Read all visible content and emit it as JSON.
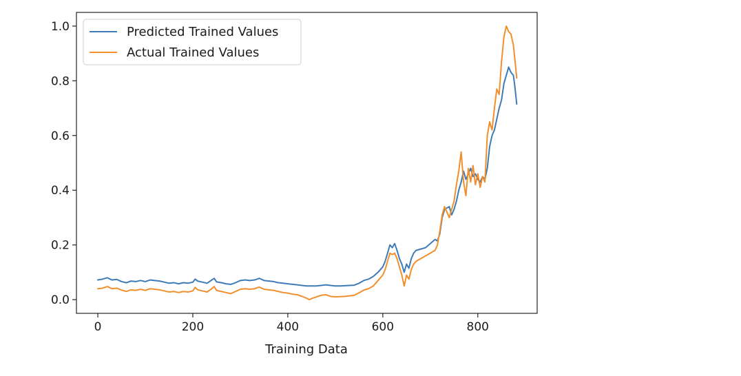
{
  "chart_data": {
    "type": "line",
    "title": "",
    "xlabel": "Training Data",
    "ylabel": "",
    "xlim": [
      -45,
      925
    ],
    "ylim": [
      -0.05,
      1.05
    ],
    "xticks": [
      0,
      200,
      400,
      600,
      800
    ],
    "xtick_labels": [
      "0",
      "200",
      "400",
      "600",
      "800"
    ],
    "yticks": [
      0.0,
      0.2,
      0.4,
      0.6,
      0.8,
      1.0
    ],
    "ytick_labels": [
      "0.0",
      "0.2",
      "0.4",
      "0.6",
      "0.8",
      "1.0"
    ],
    "grid": false,
    "legend_position": "upper-left",
    "series": [
      {
        "name": "Predicted Trained Values",
        "color": "#3d7ab8",
        "points": [
          [
            0,
            0.072
          ],
          [
            10,
            0.075
          ],
          [
            20,
            0.08
          ],
          [
            30,
            0.072
          ],
          [
            40,
            0.074
          ],
          [
            50,
            0.066
          ],
          [
            60,
            0.062
          ],
          [
            70,
            0.068
          ],
          [
            80,
            0.066
          ],
          [
            90,
            0.07
          ],
          [
            100,
            0.066
          ],
          [
            110,
            0.072
          ],
          [
            120,
            0.07
          ],
          [
            130,
            0.068
          ],
          [
            140,
            0.064
          ],
          [
            150,
            0.06
          ],
          [
            160,
            0.062
          ],
          [
            170,
            0.058
          ],
          [
            180,
            0.062
          ],
          [
            190,
            0.06
          ],
          [
            200,
            0.064
          ],
          [
            205,
            0.075
          ],
          [
            210,
            0.068
          ],
          [
            220,
            0.064
          ],
          [
            230,
            0.06
          ],
          [
            240,
            0.072
          ],
          [
            245,
            0.078
          ],
          [
            250,
            0.065
          ],
          [
            260,
            0.062
          ],
          [
            270,
            0.058
          ],
          [
            280,
            0.056
          ],
          [
            290,
            0.062
          ],
          [
            300,
            0.07
          ],
          [
            310,
            0.072
          ],
          [
            320,
            0.07
          ],
          [
            330,
            0.072
          ],
          [
            340,
            0.078
          ],
          [
            350,
            0.07
          ],
          [
            360,
            0.068
          ],
          [
            370,
            0.066
          ],
          [
            380,
            0.062
          ],
          [
            390,
            0.06
          ],
          [
            400,
            0.058
          ],
          [
            410,
            0.056
          ],
          [
            420,
            0.054
          ],
          [
            430,
            0.052
          ],
          [
            440,
            0.05
          ],
          [
            450,
            0.05
          ],
          [
            460,
            0.05
          ],
          [
            470,
            0.052
          ],
          [
            480,
            0.054
          ],
          [
            490,
            0.052
          ],
          [
            500,
            0.05
          ],
          [
            510,
            0.05
          ],
          [
            520,
            0.051
          ],
          [
            530,
            0.052
          ],
          [
            540,
            0.053
          ],
          [
            550,
            0.06
          ],
          [
            560,
            0.07
          ],
          [
            570,
            0.075
          ],
          [
            580,
            0.085
          ],
          [
            590,
            0.1
          ],
          [
            600,
            0.12
          ],
          [
            605,
            0.14
          ],
          [
            610,
            0.17
          ],
          [
            615,
            0.2
          ],
          [
            620,
            0.19
          ],
          [
            625,
            0.205
          ],
          [
            630,
            0.18
          ],
          [
            635,
            0.15
          ],
          [
            640,
            0.13
          ],
          [
            645,
            0.1
          ],
          [
            650,
            0.13
          ],
          [
            655,
            0.115
          ],
          [
            660,
            0.15
          ],
          [
            665,
            0.17
          ],
          [
            670,
            0.18
          ],
          [
            680,
            0.185
          ],
          [
            690,
            0.19
          ],
          [
            700,
            0.205
          ],
          [
            710,
            0.22
          ],
          [
            715,
            0.215
          ],
          [
            720,
            0.24
          ],
          [
            725,
            0.3
          ],
          [
            730,
            0.33
          ],
          [
            740,
            0.34
          ],
          [
            745,
            0.31
          ],
          [
            750,
            0.33
          ],
          [
            755,
            0.36
          ],
          [
            760,
            0.4
          ],
          [
            765,
            0.43
          ],
          [
            770,
            0.47
          ],
          [
            775,
            0.44
          ],
          [
            780,
            0.46
          ],
          [
            785,
            0.48
          ],
          [
            790,
            0.45
          ],
          [
            795,
            0.46
          ],
          [
            800,
            0.44
          ],
          [
            805,
            0.43
          ],
          [
            810,
            0.45
          ],
          [
            815,
            0.44
          ],
          [
            820,
            0.48
          ],
          [
            825,
            0.56
          ],
          [
            830,
            0.6
          ],
          [
            835,
            0.62
          ],
          [
            840,
            0.66
          ],
          [
            845,
            0.7
          ],
          [
            850,
            0.73
          ],
          [
            855,
            0.79
          ],
          [
            860,
            0.82
          ],
          [
            865,
            0.85
          ],
          [
            870,
            0.83
          ],
          [
            875,
            0.82
          ],
          [
            878,
            0.78
          ],
          [
            882,
            0.715
          ]
        ]
      },
      {
        "name": "Actual Trained Values",
        "color": "#f28e2b",
        "points": [
          [
            0,
            0.04
          ],
          [
            10,
            0.042
          ],
          [
            20,
            0.048
          ],
          [
            30,
            0.04
          ],
          [
            40,
            0.042
          ],
          [
            50,
            0.035
          ],
          [
            60,
            0.03
          ],
          [
            70,
            0.036
          ],
          [
            80,
            0.034
          ],
          [
            90,
            0.038
          ],
          [
            100,
            0.034
          ],
          [
            110,
            0.04
          ],
          [
            120,
            0.038
          ],
          [
            130,
            0.036
          ],
          [
            140,
            0.032
          ],
          [
            150,
            0.028
          ],
          [
            160,
            0.03
          ],
          [
            170,
            0.026
          ],
          [
            180,
            0.03
          ],
          [
            190,
            0.028
          ],
          [
            200,
            0.032
          ],
          [
            205,
            0.045
          ],
          [
            210,
            0.036
          ],
          [
            220,
            0.032
          ],
          [
            230,
            0.028
          ],
          [
            240,
            0.04
          ],
          [
            245,
            0.048
          ],
          [
            250,
            0.034
          ],
          [
            260,
            0.03
          ],
          [
            270,
            0.026
          ],
          [
            280,
            0.022
          ],
          [
            290,
            0.03
          ],
          [
            300,
            0.038
          ],
          [
            310,
            0.04
          ],
          [
            320,
            0.038
          ],
          [
            330,
            0.04
          ],
          [
            340,
            0.046
          ],
          [
            350,
            0.038
          ],
          [
            360,
            0.036
          ],
          [
            370,
            0.034
          ],
          [
            380,
            0.03
          ],
          [
            390,
            0.026
          ],
          [
            400,
            0.024
          ],
          [
            410,
            0.02
          ],
          [
            420,
            0.018
          ],
          [
            430,
            0.012
          ],
          [
            440,
            0.005
          ],
          [
            445,
            0.0
          ],
          [
            450,
            0.004
          ],
          [
            460,
            0.01
          ],
          [
            470,
            0.016
          ],
          [
            480,
            0.018
          ],
          [
            490,
            0.012
          ],
          [
            500,
            0.01
          ],
          [
            510,
            0.011
          ],
          [
            520,
            0.012
          ],
          [
            530,
            0.014
          ],
          [
            540,
            0.016
          ],
          [
            550,
            0.025
          ],
          [
            560,
            0.035
          ],
          [
            570,
            0.04
          ],
          [
            580,
            0.05
          ],
          [
            590,
            0.07
          ],
          [
            600,
            0.09
          ],
          [
            605,
            0.11
          ],
          [
            610,
            0.14
          ],
          [
            615,
            0.17
          ],
          [
            620,
            0.165
          ],
          [
            625,
            0.17
          ],
          [
            630,
            0.15
          ],
          [
            635,
            0.12
          ],
          [
            640,
            0.09
          ],
          [
            645,
            0.05
          ],
          [
            650,
            0.09
          ],
          [
            655,
            0.075
          ],
          [
            660,
            0.11
          ],
          [
            665,
            0.13
          ],
          [
            670,
            0.14
          ],
          [
            680,
            0.15
          ],
          [
            690,
            0.16
          ],
          [
            700,
            0.17
          ],
          [
            710,
            0.18
          ],
          [
            715,
            0.2
          ],
          [
            720,
            0.25
          ],
          [
            725,
            0.31
          ],
          [
            730,
            0.34
          ],
          [
            740,
            0.3
          ],
          [
            745,
            0.33
          ],
          [
            750,
            0.36
          ],
          [
            755,
            0.42
          ],
          [
            760,
            0.47
          ],
          [
            765,
            0.54
          ],
          [
            770,
            0.43
          ],
          [
            775,
            0.38
          ],
          [
            780,
            0.48
          ],
          [
            785,
            0.43
          ],
          [
            790,
            0.49
          ],
          [
            795,
            0.42
          ],
          [
            800,
            0.46
          ],
          [
            805,
            0.41
          ],
          [
            810,
            0.45
          ],
          [
            815,
            0.43
          ],
          [
            820,
            0.6
          ],
          [
            825,
            0.65
          ],
          [
            830,
            0.62
          ],
          [
            835,
            0.7
          ],
          [
            840,
            0.77
          ],
          [
            845,
            0.75
          ],
          [
            850,
            0.87
          ],
          [
            855,
            0.96
          ],
          [
            860,
            1.0
          ],
          [
            865,
            0.98
          ],
          [
            870,
            0.97
          ],
          [
            875,
            0.93
          ],
          [
            878,
            0.88
          ],
          [
            882,
            0.81
          ]
        ]
      }
    ]
  }
}
